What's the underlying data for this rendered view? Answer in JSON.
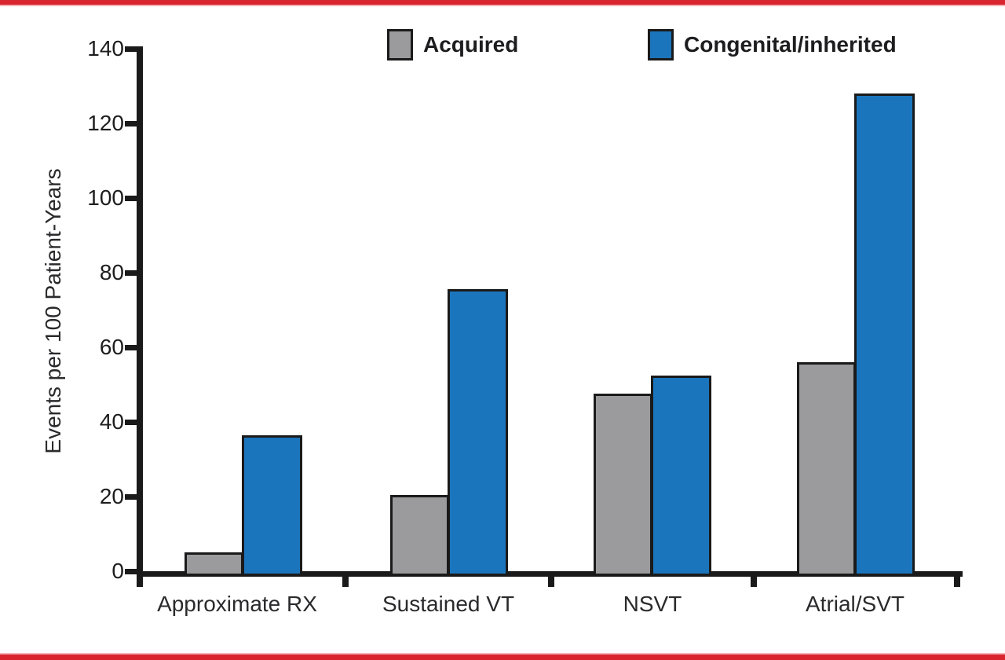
{
  "frame": {
    "rule_color": "#D9252E",
    "rule_color_light": "#F3B3B8"
  },
  "chart_data": {
    "type": "bar",
    "title": "",
    "xlabel": "",
    "ylabel": "Events per 100 Patient-Years",
    "categories": [
      "Approximate RX",
      "Sustained VT",
      "NSVT",
      "Atrial/SVT"
    ],
    "series": [
      {
        "name": "Acquired",
        "color": "#9B9B9D",
        "values": [
          5,
          20.5,
          47.5,
          56
        ]
      },
      {
        "name": "Congenital/inherited",
        "color": "#1B75BC",
        "values": [
          36.5,
          75.5,
          52.5,
          128
        ]
      }
    ],
    "ylim": [
      0,
      140
    ],
    "yticks": [
      0,
      20,
      40,
      60,
      80,
      100,
      120,
      140
    ],
    "grid": false,
    "legend_position": "top",
    "bar_outline_color": "#1A1A1A",
    "axis_color": "#1A1A1A"
  }
}
